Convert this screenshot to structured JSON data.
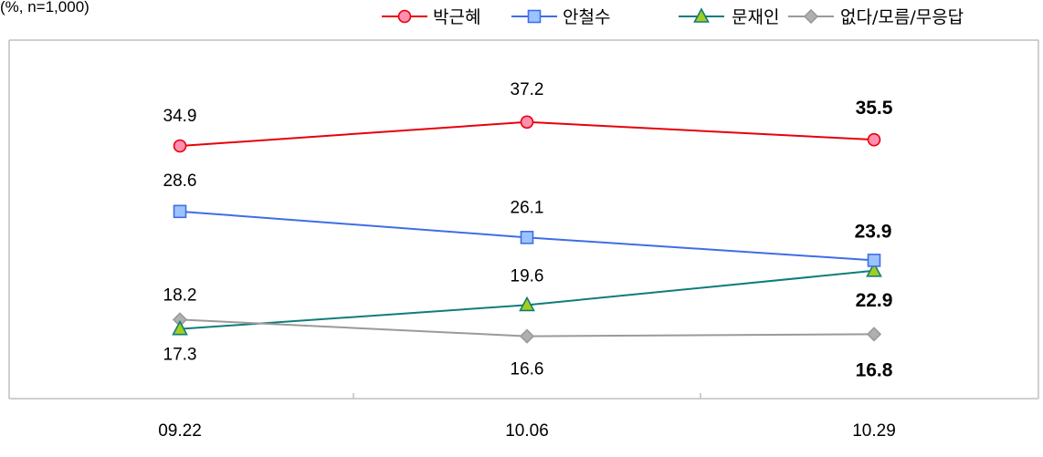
{
  "unit_note": "(%, n=1,000)",
  "chart_data": {
    "type": "line",
    "categories": [
      "09.22",
      "10.06",
      "10.29"
    ],
    "series": [
      {
        "name": "박근혜",
        "values": [
          34.9,
          37.2,
          35.5
        ],
        "color": "#e8000b",
        "fill": "#ff8fb0",
        "marker": "circle"
      },
      {
        "name": "안철수",
        "values": [
          28.6,
          26.1,
          23.9
        ],
        "color": "#3e6ee6",
        "fill": "#9cc3ff",
        "marker": "square"
      },
      {
        "name": "문재인",
        "values": [
          17.3,
          19.6,
          22.9
        ],
        "color": "#0f7d7a",
        "fill": "#a6cc1e",
        "marker": "triangle"
      },
      {
        "name": "없다/모름/무응답",
        "values": [
          18.2,
          16.6,
          16.8
        ],
        "color": "#9a9a9a",
        "fill": "#b0b0b0",
        "marker": "diamond"
      }
    ],
    "legend_position": "top-right",
    "grid": false,
    "last_point_labels_bold": true
  }
}
